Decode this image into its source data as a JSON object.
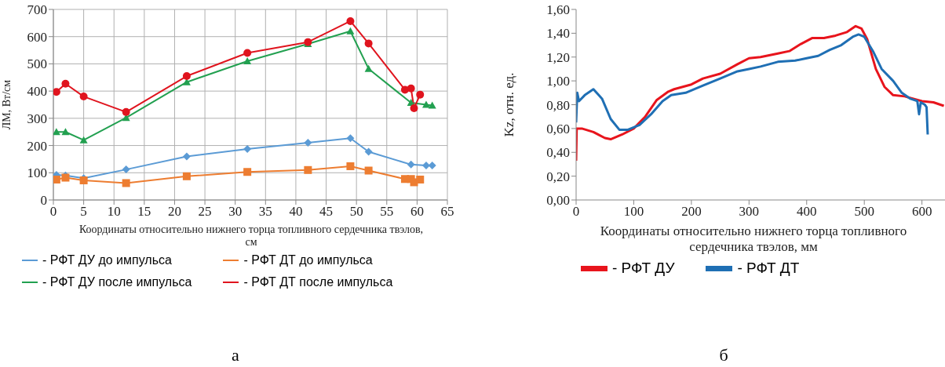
{
  "chart_data": [
    {
      "type": "line",
      "ylabel": "ЛМ, Вт/см",
      "xlabel": "Координаты относительно нижнего торца топливного сердечника твэлов, см",
      "xlim": [
        0,
        65
      ],
      "xticks": [
        0,
        5,
        10,
        15,
        20,
        25,
        30,
        35,
        40,
        45,
        50,
        55,
        60,
        65
      ],
      "ylim": [
        0,
        700
      ],
      "yticks": [
        0,
        100,
        200,
        300,
        400,
        500,
        600,
        700
      ],
      "grid": true,
      "legend": "bottom",
      "annotations": [
        "а"
      ],
      "series": [
        {
          "name": "- РФТ ДУ до импульса",
          "color": "#5b9bd5",
          "marker": "diamond",
          "x": [
            0.5,
            2,
            5,
            12,
            22,
            32,
            42,
            49,
            52,
            59,
            61.5,
            62.5
          ],
          "values": [
            92,
            90,
            80,
            112,
            160,
            187,
            210,
            227,
            177,
            130,
            127,
            127
          ]
        },
        {
          "name": "- РФТ ДТ до импульса",
          "color": "#ed7d31",
          "marker": "square",
          "x": [
            0.5,
            2,
            5,
            12,
            22,
            32,
            42,
            49,
            52,
            58,
            59,
            59.5,
            60.5
          ],
          "values": [
            75,
            82,
            72,
            62,
            87,
            103,
            110,
            124,
            108,
            77,
            77,
            65,
            75
          ]
        },
        {
          "name": "- РФТ ДУ после импульса",
          "color": "#22a050",
          "marker": "triangle",
          "x": [
            0.5,
            2,
            5,
            12,
            22,
            32,
            42,
            49,
            52,
            59,
            61.5,
            62.5
          ],
          "values": [
            250,
            250,
            220,
            302,
            433,
            510,
            573,
            620,
            482,
            357,
            350,
            347
          ]
        },
        {
          "name": "- РФТ ДТ после импульса",
          "color": "#e0141e",
          "marker": "circle",
          "x": [
            0.5,
            2,
            5,
            12,
            22,
            32,
            42,
            49,
            52,
            58,
            59,
            59.5,
            60.5
          ],
          "values": [
            397,
            427,
            380,
            323,
            455,
            540,
            580,
            657,
            575,
            405,
            410,
            337,
            387
          ]
        }
      ]
    },
    {
      "type": "line",
      "ylabel": "Kz, отн. ед.",
      "xlabel": "Координаты относительно нижнего торца топливного сердечника твэлов, мм",
      "xlim": [
        0,
        640
      ],
      "xticks": [
        0,
        100,
        200,
        300,
        400,
        500,
        600
      ],
      "ylim": [
        0,
        1.6
      ],
      "yticks": [
        {
          "value": 0,
          "label": "0,00"
        },
        {
          "value": 0.2,
          "label": "0,20"
        },
        {
          "value": 0.4,
          "label": "0,40"
        },
        {
          "value": 0.6,
          "label": "0,60"
        },
        {
          "value": 0.8,
          "label": "0,80"
        },
        {
          "value": 1.0,
          "label": "1,00"
        },
        {
          "value": 1.2,
          "label": "1,20"
        },
        {
          "value": 1.4,
          "label": "1,40"
        },
        {
          "value": 1.6,
          "label": "1,60"
        }
      ],
      "grid": false,
      "legend": "bottom",
      "marker": "none",
      "annotations": [
        "б"
      ],
      "series": [
        {
          "name": "- РФТ ДУ",
          "color": "#e8141c",
          "x": [
            0,
            1,
            10,
            30,
            50,
            60,
            80,
            100,
            120,
            140,
            160,
            170,
            200,
            220,
            250,
            280,
            300,
            320,
            350,
            370,
            390,
            410,
            430,
            450,
            470,
            485,
            495,
            505,
            520,
            535,
            550,
            570,
            600,
            620,
            638
          ],
          "values": [
            0.33,
            0.6,
            0.6,
            0.57,
            0.52,
            0.51,
            0.55,
            0.6,
            0.7,
            0.84,
            0.91,
            0.93,
            0.97,
            1.02,
            1.06,
            1.14,
            1.19,
            1.2,
            1.23,
            1.25,
            1.31,
            1.36,
            1.36,
            1.38,
            1.41,
            1.46,
            1.44,
            1.35,
            1.1,
            0.95,
            0.88,
            0.87,
            0.83,
            0.82,
            0.79
          ]
        },
        {
          "name": "- РФТ ДТ",
          "color": "#1f6fb4",
          "x": [
            0,
            2,
            5,
            15,
            30,
            45,
            60,
            75,
            90,
            110,
            130,
            150,
            165,
            190,
            220,
            250,
            280,
            300,
            320,
            350,
            380,
            400,
            420,
            440,
            460,
            480,
            490,
            500,
            515,
            530,
            550,
            565,
            580,
            592,
            595,
            598,
            605,
            608,
            610
          ],
          "values": [
            0.65,
            0.9,
            0.83,
            0.88,
            0.93,
            0.85,
            0.68,
            0.59,
            0.59,
            0.63,
            0.72,
            0.83,
            0.88,
            0.9,
            0.96,
            1.02,
            1.08,
            1.1,
            1.12,
            1.16,
            1.17,
            1.19,
            1.21,
            1.26,
            1.3,
            1.37,
            1.39,
            1.37,
            1.25,
            1.1,
            1.0,
            0.9,
            0.85,
            0.83,
            0.72,
            0.82,
            0.8,
            0.78,
            0.55
          ]
        }
      ]
    }
  ]
}
